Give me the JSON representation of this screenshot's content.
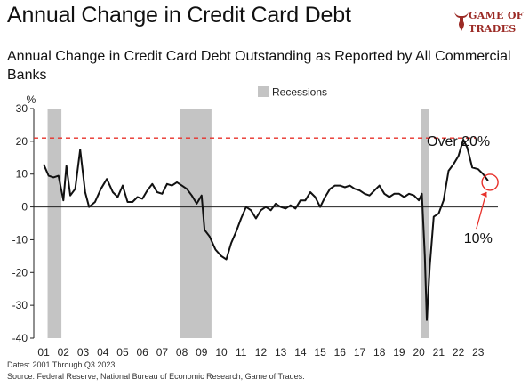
{
  "title": "Annual Change in Credit Card Debt",
  "subtitle": "Annual Change in Credit Card Debt Outstanding as Reported by All Commercial Banks",
  "brand": {
    "line1": "GAME OF",
    "line2": "TRADES",
    "icon": "bull-head-icon",
    "color": "#9b2a25"
  },
  "footer": {
    "dates": "Dates: 2001 Through Q3 2023.",
    "source": "Source: Federal Reserve, National Bureau of Economic Research, Game of Trades."
  },
  "chart_data": {
    "type": "line",
    "title": "",
    "xlabel": "",
    "ylabel": "%",
    "xlim": [
      2000.5,
      2024
    ],
    "ylim": [
      -40,
      30
    ],
    "yticks": [
      30,
      20,
      10,
      0,
      -10,
      -20,
      -30,
      -40
    ],
    "xticks": [
      "01",
      "02",
      "03",
      "04",
      "05",
      "06",
      "07",
      "08",
      "09",
      "10",
      "11",
      "12",
      "13",
      "14",
      "15",
      "16",
      "17",
      "18",
      "19",
      "20",
      "21",
      "22",
      "23"
    ],
    "grid": false,
    "legend": {
      "position": "top-center",
      "entries": [
        {
          "label": "Recessions",
          "color": "#c4c4c4"
        }
      ]
    },
    "recessions": [
      [
        2001.2,
        2001.9
      ],
      [
        2007.9,
        2009.5
      ],
      [
        2020.1,
        2020.5
      ]
    ],
    "reference_line": {
      "y": 21,
      "color": "#e8302a",
      "style": "dashed"
    },
    "annotations": [
      {
        "text": "Over 20%",
        "x": 2022.0,
        "y": 20.5
      },
      {
        "text": "10%",
        "x": 2023.6,
        "y": 7.5,
        "label_x": 2023.0,
        "label_y": -11
      }
    ],
    "series": [
      {
        "color": "#111111",
        "points": [
          [
            2001.0,
            13
          ],
          [
            2001.25,
            9.5
          ],
          [
            2001.5,
            9
          ],
          [
            2001.75,
            9.5
          ],
          [
            2002.0,
            2
          ],
          [
            2002.15,
            12.5
          ],
          [
            2002.35,
            3.5
          ],
          [
            2002.6,
            5.5
          ],
          [
            2002.85,
            17.5
          ],
          [
            2003.1,
            4.5
          ],
          [
            2003.3,
            0
          ],
          [
            2003.6,
            1.5
          ],
          [
            2003.9,
            5.5
          ],
          [
            2004.2,
            8.5
          ],
          [
            2004.5,
            4.5
          ],
          [
            2004.75,
            3
          ],
          [
            2005.0,
            6.5
          ],
          [
            2005.25,
            1.5
          ],
          [
            2005.5,
            1.5
          ],
          [
            2005.75,
            3
          ],
          [
            2006.0,
            2.5
          ],
          [
            2006.25,
            5
          ],
          [
            2006.5,
            7
          ],
          [
            2006.75,
            4.5
          ],
          [
            2007.0,
            4
          ],
          [
            2007.25,
            7
          ],
          [
            2007.5,
            6.5
          ],
          [
            2007.75,
            7.5
          ],
          [
            2008.0,
            6.5
          ],
          [
            2008.25,
            5.5
          ],
          [
            2008.5,
            3.5
          ],
          [
            2008.75,
            1
          ],
          [
            2009.0,
            3.5
          ],
          [
            2009.15,
            -7
          ],
          [
            2009.4,
            -9
          ],
          [
            2009.7,
            -13
          ],
          [
            2010.0,
            -15
          ],
          [
            2010.25,
            -16
          ],
          [
            2010.5,
            -11
          ],
          [
            2010.75,
            -7.5
          ],
          [
            2011.0,
            -3.5
          ],
          [
            2011.25,
            0
          ],
          [
            2011.5,
            -1
          ],
          [
            2011.75,
            -3.5
          ],
          [
            2012.0,
            -1
          ],
          [
            2012.25,
            0
          ],
          [
            2012.5,
            -1
          ],
          [
            2012.75,
            1
          ],
          [
            2013.0,
            0
          ],
          [
            2013.25,
            -0.5
          ],
          [
            2013.5,
            0.5
          ],
          [
            2013.75,
            -0.5
          ],
          [
            2014.0,
            2
          ],
          [
            2014.25,
            2
          ],
          [
            2014.5,
            4.5
          ],
          [
            2014.75,
            3
          ],
          [
            2015.0,
            0
          ],
          [
            2015.25,
            3
          ],
          [
            2015.5,
            5.5
          ],
          [
            2015.75,
            6.5
          ],
          [
            2016.0,
            6.5
          ],
          [
            2016.25,
            6
          ],
          [
            2016.5,
            6.5
          ],
          [
            2016.75,
            5.5
          ],
          [
            2017.0,
            5
          ],
          [
            2017.25,
            4
          ],
          [
            2017.5,
            3.5
          ],
          [
            2017.75,
            5
          ],
          [
            2018.0,
            6.5
          ],
          [
            2018.25,
            4
          ],
          [
            2018.5,
            3
          ],
          [
            2018.75,
            4
          ],
          [
            2019.0,
            4
          ],
          [
            2019.25,
            3
          ],
          [
            2019.5,
            4
          ],
          [
            2019.75,
            3.5
          ],
          [
            2020.0,
            2
          ],
          [
            2020.15,
            4
          ],
          [
            2020.3,
            -15
          ],
          [
            2020.4,
            -34.5
          ],
          [
            2020.55,
            -18
          ],
          [
            2020.75,
            -3
          ],
          [
            2021.0,
            -2
          ],
          [
            2021.25,
            2
          ],
          [
            2021.5,
            11
          ],
          [
            2021.75,
            13
          ],
          [
            2022.0,
            15.5
          ],
          [
            2022.25,
            20.5
          ],
          [
            2022.45,
            18
          ],
          [
            2022.7,
            12
          ],
          [
            2023.0,
            11.5
          ],
          [
            2023.25,
            10
          ],
          [
            2023.5,
            8
          ]
        ]
      }
    ]
  }
}
